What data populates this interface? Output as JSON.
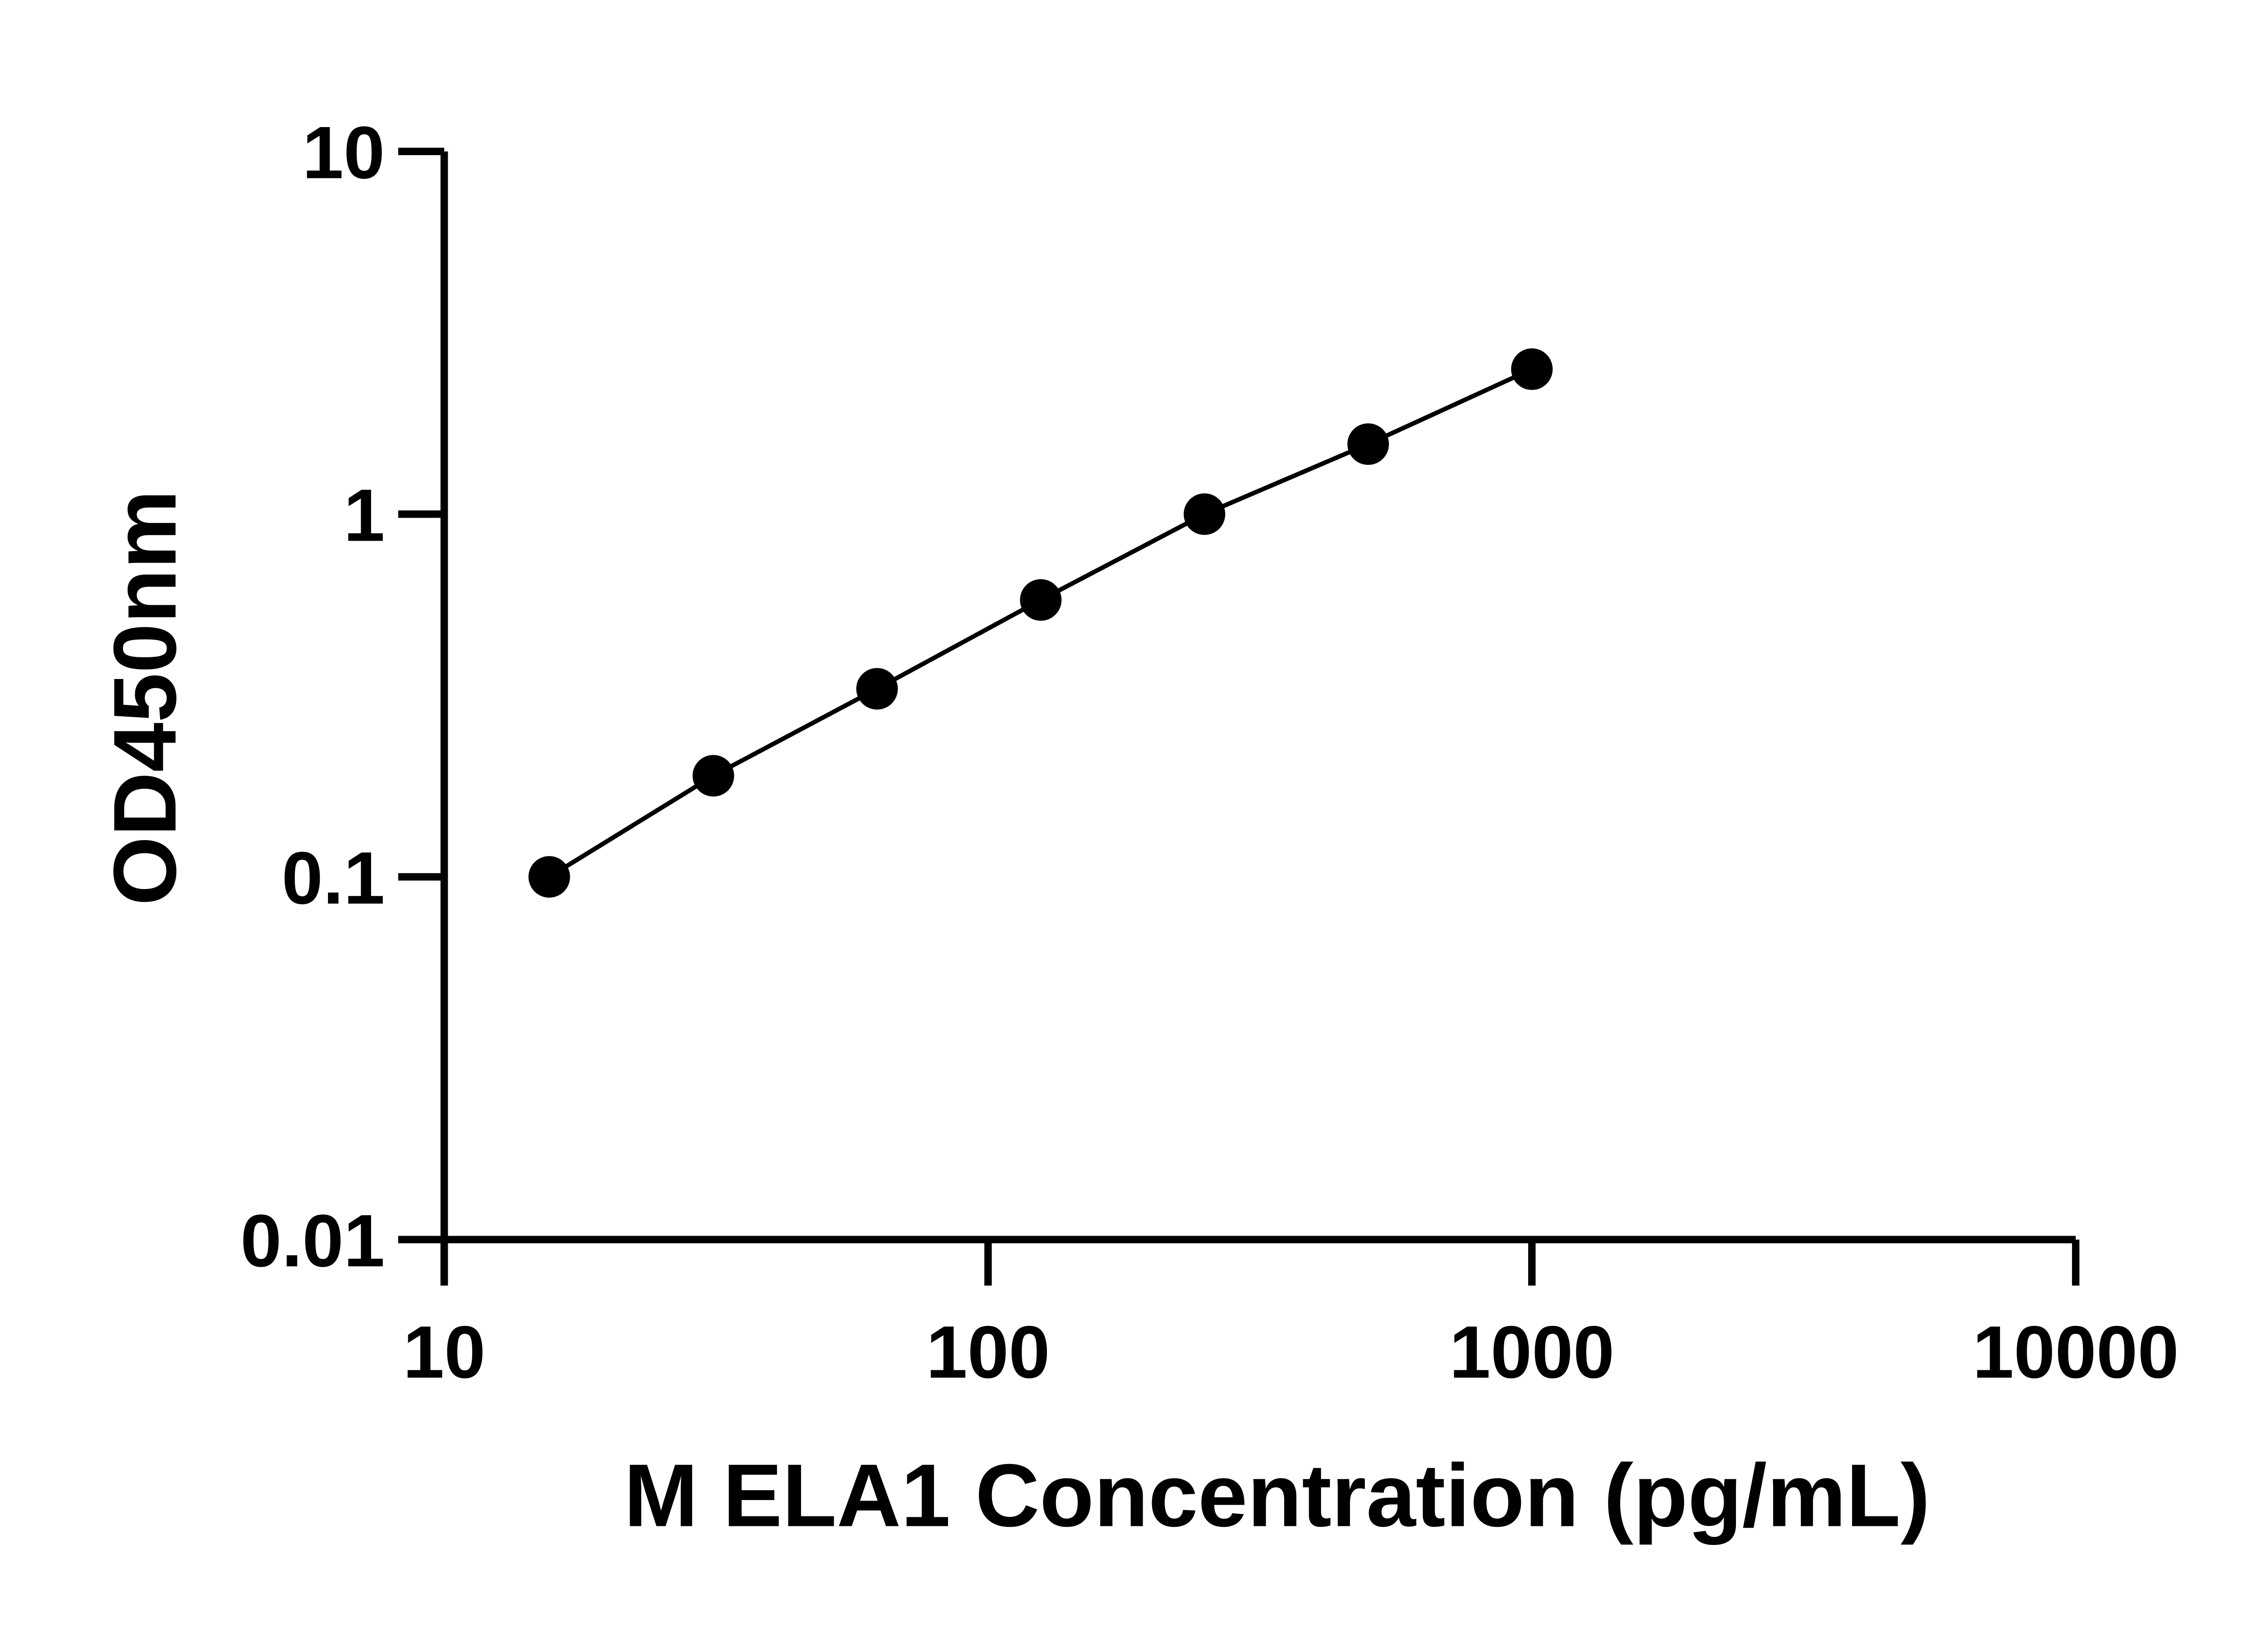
{
  "chart_data": {
    "type": "scatter",
    "x_label": "M ELA1 Concentration (pg/mL)",
    "y_label": "OD450nm",
    "x": [
      15.6,
      31.25,
      62.5,
      125,
      250,
      500,
      1000
    ],
    "series": [
      {
        "color": "#000000",
        "values": [
          0.1,
          0.19,
          0.33,
          0.58,
          1.0,
          1.56,
          2.51
        ]
      }
    ],
    "x_log": true,
    "y_log": true,
    "xlim": [
      10,
      10000
    ],
    "ylim": [
      0.01,
      10
    ],
    "xticks": [
      10,
      100,
      1000,
      10000
    ],
    "yticks": [
      0.01,
      0.1,
      1,
      10
    ],
    "line": true
  }
}
